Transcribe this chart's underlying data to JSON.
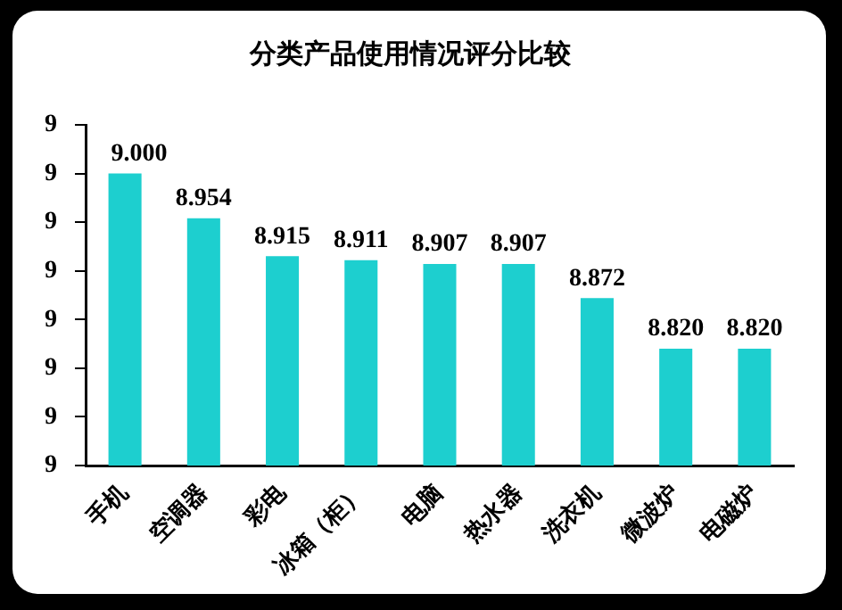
{
  "chart_data": {
    "type": "bar",
    "title": "分类产品使用情况评分比较",
    "categories": [
      "手机",
      "空调器",
      "彩电",
      "冰箱（柜）",
      "电脑",
      "热水器",
      "洗衣机",
      "微波炉",
      "电磁炉"
    ],
    "values": [
      9.0,
      8.954,
      8.915,
      8.911,
      8.907,
      8.907,
      8.872,
      8.82,
      8.82
    ],
    "value_labels": [
      "9.000",
      "8.954",
      "8.915",
      "8.911",
      "8.907",
      "8.907",
      "8.872",
      "8.820",
      "8.820"
    ],
    "color": "#1dcfcf",
    "ylim": [
      8.7,
      9.05
    ],
    "yticks": [
      {
        "value": 8.7,
        "label": "9"
      },
      {
        "value": 8.75,
        "label": "9"
      },
      {
        "value": 8.8,
        "label": "9"
      },
      {
        "value": 8.85,
        "label": "9"
      },
      {
        "value": 8.9,
        "label": "9"
      },
      {
        "value": 8.95,
        "label": "9"
      },
      {
        "value": 9.0,
        "label": "9"
      },
      {
        "value": 9.05,
        "label": "9"
      }
    ],
    "grid": false,
    "legend": false
  }
}
